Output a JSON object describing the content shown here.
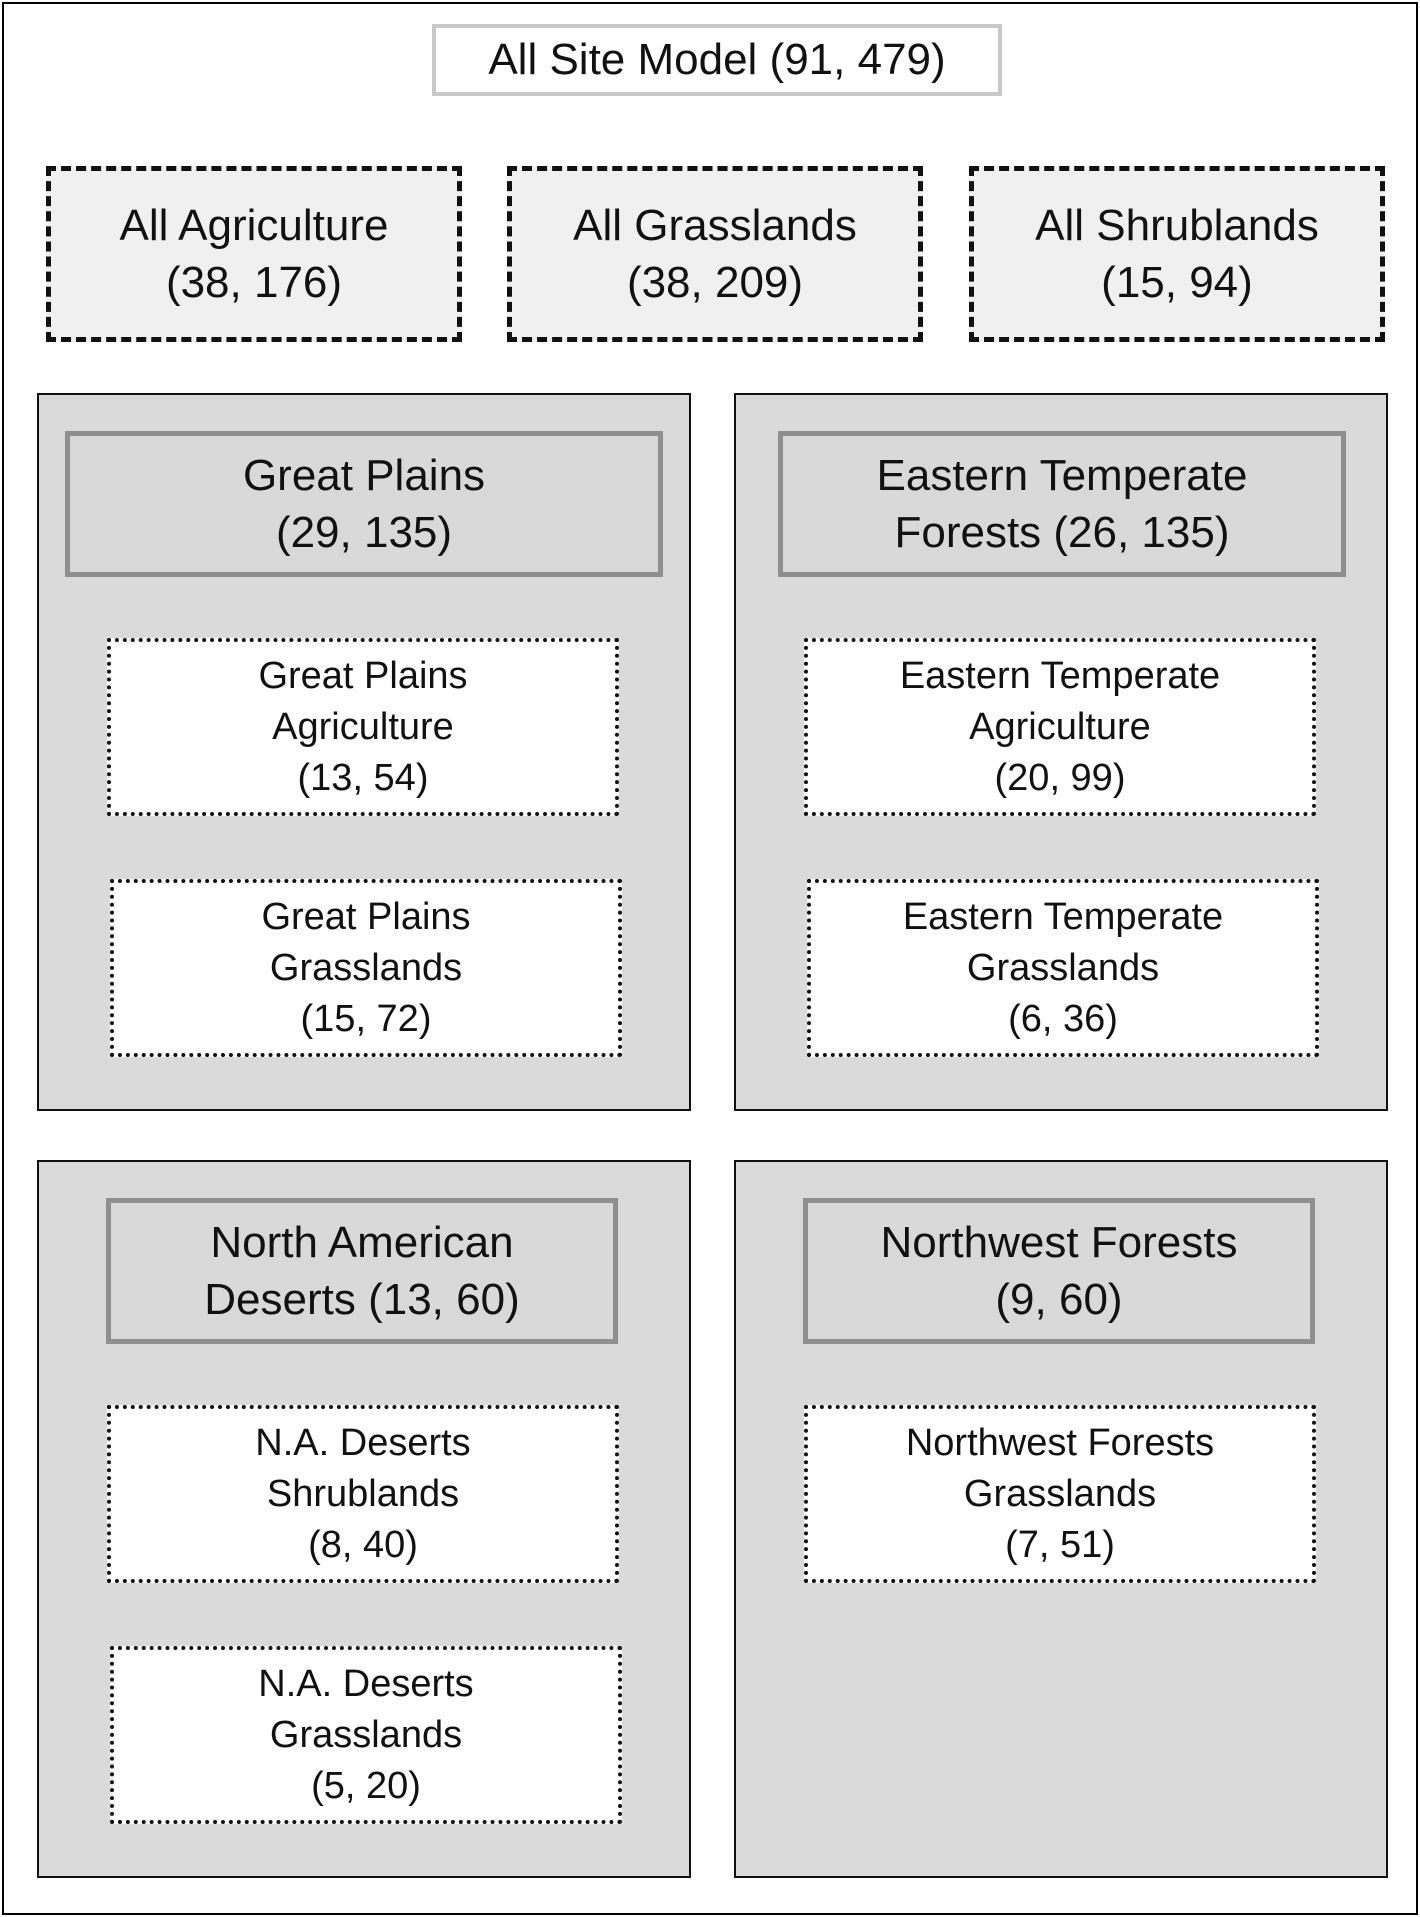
{
  "root": {
    "label": "All Site Model (91, 479)"
  },
  "land_covers": [
    {
      "label": "All Agriculture\n(38, 176)"
    },
    {
      "label": "All Grasslands\n(38, 209)"
    },
    {
      "label": "All Shrublands\n(15, 94)"
    }
  ],
  "regions": [
    {
      "label": "Great Plains\n(29, 135)",
      "subgroups": [
        {
          "label": "Great Plains\nAgriculture\n(13, 54)"
        },
        {
          "label": "Great Plains\nGrasslands\n(15, 72)"
        }
      ]
    },
    {
      "label": "Eastern Temperate\nForests (26, 135)",
      "subgroups": [
        {
          "label": "Eastern Temperate\nAgriculture\n(20, 99)"
        },
        {
          "label": "Eastern Temperate\nGrasslands\n(6, 36)"
        }
      ]
    },
    {
      "label": "North American\nDeserts (13, 60)",
      "subgroups": [
        {
          "label": "N.A. Deserts\nShrublands\n(8, 40)"
        },
        {
          "label": "N.A. Deserts\nGrasslands\n(5, 20)"
        }
      ]
    },
    {
      "label": "Northwest Forests\n(9, 60)",
      "subgroups": [
        {
          "label": "Northwest Forests\nGrasslands\n(7, 51)"
        }
      ]
    }
  ]
}
